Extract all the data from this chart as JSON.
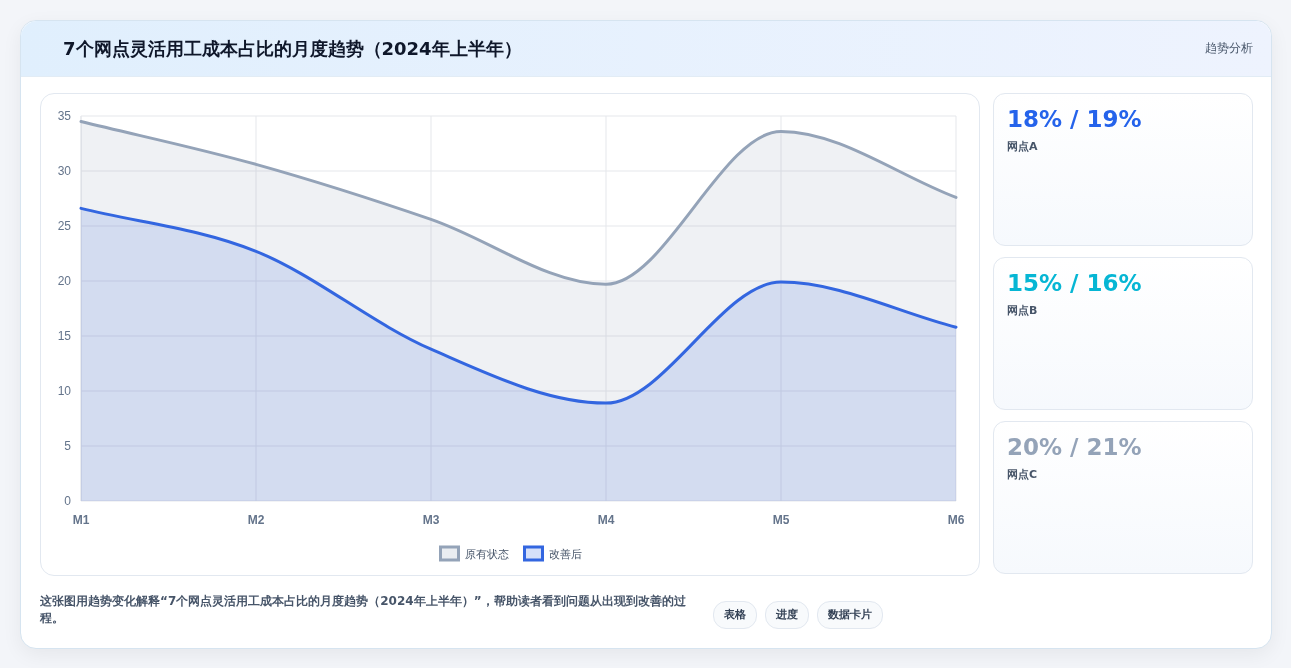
{
  "chart_data": [
    {
      "type": "area",
      "title": "7个网点灵活用工成本占比的月度趋势（2024年上半年）",
      "categories": [
        "M1",
        "M2",
        "M3",
        "M4",
        "M5",
        "M6"
      ],
      "series": [
        {
          "name": "原有状态",
          "color": "#94a3b8",
          "values": [
            34.5,
            30.6,
            25.6,
            19.7,
            33.6,
            27.6
          ]
        },
        {
          "name": "改善后",
          "color": "#3366e0",
          "values": [
            26.6,
            22.7,
            13.8,
            8.9,
            19.9,
            15.8
          ]
        }
      ],
      "ylim": [
        0,
        35
      ],
      "yticks": [
        0,
        5,
        10,
        15,
        20,
        25,
        30,
        35
      ],
      "grid": true,
      "legend": "bottom",
      "marker": "none",
      "line_style": "solid",
      "annotations": [
        "这张图用趋势变化解释“7个网点灵活用工成本占比的月度趋势（2024年上半年）”，帮助读者看到问题从出现到改善的过程。",
        "表格",
        "进度",
        "数据卡片"
      ]
    },
    {
      "type": "other",
      "title": "趋势分析",
      "colors": [
        "#2563eb",
        "#06b6d4",
        "#94a3b8"
      ],
      "annotations": [
        "18% / 19%",
        "网点A",
        "15% / 16%",
        "网点B",
        "20% / 21%",
        "网点C"
      ]
    }
  ]
}
